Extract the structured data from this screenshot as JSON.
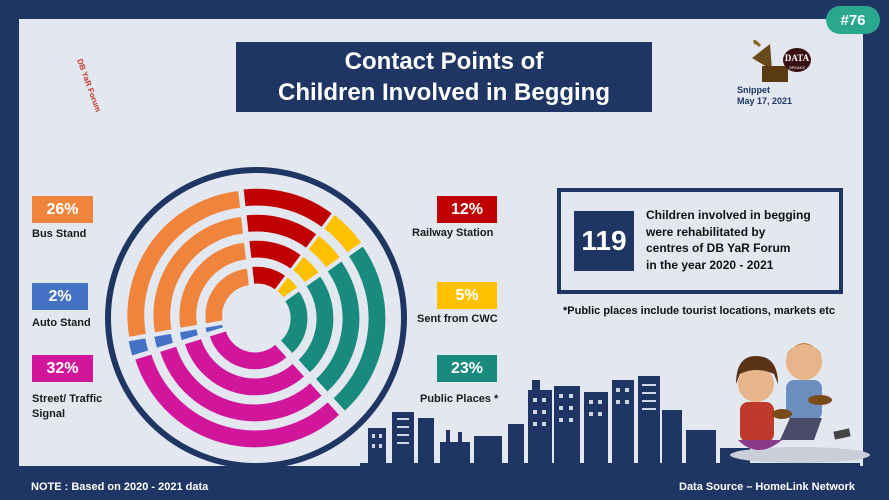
{
  "badge": "#76",
  "logo": {
    "text": "DB YaR Forum"
  },
  "title": {
    "line1": "Contact Points of",
    "line2": "Children Involved in Begging"
  },
  "snippet": {
    "logo_text": "DATA",
    "logo_sub": "SPEAKS",
    "label": "Snippet",
    "date": "May 17, 2021"
  },
  "chart_data": {
    "type": "pie",
    "title": "Contact Points of Children Involved in Begging",
    "slices": [
      {
        "label": "Bus Stand",
        "value": 26,
        "display": "26%",
        "color": "#f0843c"
      },
      {
        "label": "Railway Station",
        "value": 12,
        "display": "12%",
        "color": "#c00000"
      },
      {
        "label": "Sent from CWC",
        "value": 5,
        "display": "5%",
        "color": "#ffc000"
      },
      {
        "label": "Public Places *",
        "value": 23,
        "display": "23%",
        "color": "#188a7e"
      },
      {
        "label": "Street/ Traffic Signal",
        "value": 32,
        "display": "32%",
        "color": "#d1169c"
      },
      {
        "label": "Auto Stand",
        "value": 2,
        "display": "2%",
        "color": "#4472c4"
      }
    ]
  },
  "stat": {
    "number": "119",
    "lines": [
      "Children involved in begging",
      "were rehabilitated  by",
      "centres of  DB YaR Forum",
      "in the year 2020 - 2021"
    ]
  },
  "footnote": "*Public places include tourist locations, markets etc",
  "note": "NOTE : Based on 2020 - 2021 data",
  "source": "Data Source – HomeLink Network",
  "colors": {
    "frame": "#1f3564",
    "panel": "#e3e8f0",
    "badge": "#29a88e"
  }
}
